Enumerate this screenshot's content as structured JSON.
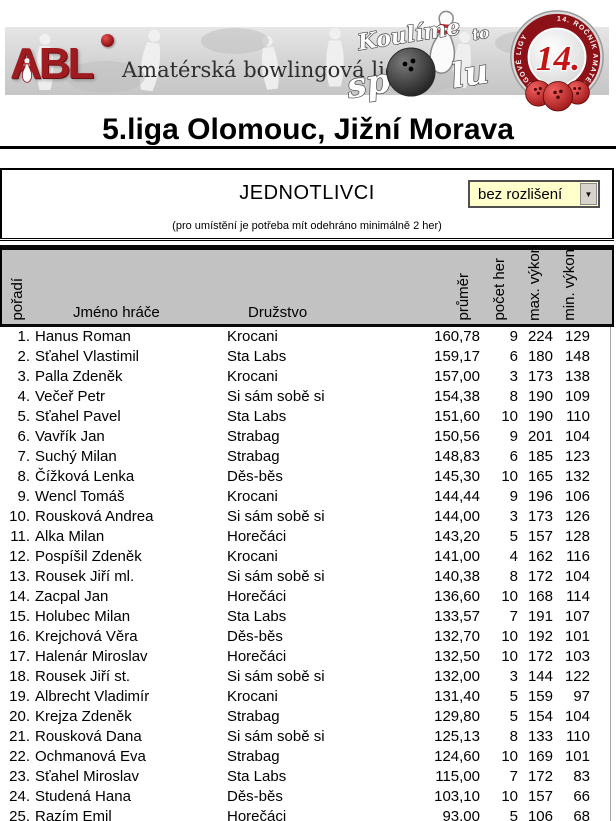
{
  "banner": {
    "abl_text": "ABL",
    "tagline": "Amatérská bowlingová liga",
    "koulime": {
      "word1": "Koulíme",
      "word2": "to",
      "word3": "sp",
      "word4": "lu"
    },
    "badge": {
      "number": "14.",
      "ring_text": "14. ROČNÍK AMATÉRSKÉ BOWLINGOVÉ LIGY"
    }
  },
  "title": "5.liga Olomouc, Jižní Morava",
  "section": {
    "heading": "JEDNOTLIVCI",
    "filter_value": "bez rozlišení",
    "note": "(pro umístění je potřeba mít odehráno minimálně 2 her)"
  },
  "table": {
    "headers": {
      "poradi": "pořadí",
      "jmeno": "Jméno hráče",
      "druzstvo": "Družstvo",
      "prumer": "průměr",
      "pocet": "počet her",
      "max": "max. výkon",
      "min": "min. výkon"
    },
    "rows": [
      {
        "rank": 1,
        "name": "Hanus Roman",
        "team": "Krocani",
        "avg": "160,78",
        "games": 9,
        "max": 224,
        "min": 129
      },
      {
        "rank": 2,
        "name": "Sťahel Vlastimil",
        "team": "Sta Labs",
        "avg": "159,17",
        "games": 6,
        "max": 180,
        "min": 148
      },
      {
        "rank": 3,
        "name": "Palla Zdeněk",
        "team": "Krocani",
        "avg": "157,00",
        "games": 3,
        "max": 173,
        "min": 138
      },
      {
        "rank": 4,
        "name": "Večeř Petr",
        "team": "Si sám sobě si",
        "avg": "154,38",
        "games": 8,
        "max": 190,
        "min": 109
      },
      {
        "rank": 5,
        "name": "Sťahel Pavel",
        "team": "Sta Labs",
        "avg": "151,60",
        "games": 10,
        "max": 190,
        "min": 110
      },
      {
        "rank": 6,
        "name": "Vavřík Jan",
        "team": "Strabag",
        "avg": "150,56",
        "games": 9,
        "max": 201,
        "min": 104
      },
      {
        "rank": 7,
        "name": "Suchý Milan",
        "team": "Strabag",
        "avg": "148,83",
        "games": 6,
        "max": 185,
        "min": 123
      },
      {
        "rank": 8,
        "name": "Čížková Lenka",
        "team": "Děs-běs",
        "avg": "145,30",
        "games": 10,
        "max": 165,
        "min": 132
      },
      {
        "rank": 9,
        "name": "Wencl Tomáš",
        "team": "Krocani",
        "avg": "144,44",
        "games": 9,
        "max": 196,
        "min": 106
      },
      {
        "rank": 10,
        "name": "Rousková Andrea",
        "team": "Si sám sobě si",
        "avg": "144,00",
        "games": 3,
        "max": 173,
        "min": 126
      },
      {
        "rank": 11,
        "name": "Alka Milan",
        "team": "Horečáci",
        "avg": "143,20",
        "games": 5,
        "max": 157,
        "min": 128
      },
      {
        "rank": 12,
        "name": "Pospíšil Zdeněk",
        "team": "Krocani",
        "avg": "141,00",
        "games": 4,
        "max": 162,
        "min": 116
      },
      {
        "rank": 13,
        "name": "Rousek Jiří ml.",
        "team": "Si sám sobě si",
        "avg": "140,38",
        "games": 8,
        "max": 172,
        "min": 104
      },
      {
        "rank": 14,
        "name": "Zacpal Jan",
        "team": "Horečáci",
        "avg": "136,60",
        "games": 10,
        "max": 168,
        "min": 114
      },
      {
        "rank": 15,
        "name": "Holubec Milan",
        "team": "Sta Labs",
        "avg": "133,57",
        "games": 7,
        "max": 191,
        "min": 107
      },
      {
        "rank": 16,
        "name": "Krejchová Věra",
        "team": "Děs-běs",
        "avg": "132,70",
        "games": 10,
        "max": 192,
        "min": 101
      },
      {
        "rank": 17,
        "name": "Halenár Miroslav",
        "team": "Horečáci",
        "avg": "132,50",
        "games": 10,
        "max": 172,
        "min": 103
      },
      {
        "rank": 18,
        "name": "Rousek Jiří st.",
        "team": "Si sám sobě si",
        "avg": "132,00",
        "games": 3,
        "max": 144,
        "min": 122
      },
      {
        "rank": 19,
        "name": "Albrecht Vladimír",
        "team": "Krocani",
        "avg": "131,40",
        "games": 5,
        "max": 159,
        "min": 97
      },
      {
        "rank": 20,
        "name": "Krejza Zdeněk",
        "team": "Strabag",
        "avg": "129,80",
        "games": 5,
        "max": 154,
        "min": 104
      },
      {
        "rank": 21,
        "name": "Rousková Dana",
        "team": "Si sám sobě si",
        "avg": "125,13",
        "games": 8,
        "max": 133,
        "min": 110
      },
      {
        "rank": 22,
        "name": "Ochmanová Eva",
        "team": "Strabag",
        "avg": "124,60",
        "games": 10,
        "max": 169,
        "min": 101
      },
      {
        "rank": 23,
        "name": "Sťahel Miroslav",
        "team": "Sta Labs",
        "avg": "115,00",
        "games": 7,
        "max": 172,
        "min": 83
      },
      {
        "rank": 24,
        "name": "Studená Hana",
        "team": "Děs-běs",
        "avg": "103,10",
        "games": 10,
        "max": 157,
        "min": 66
      },
      {
        "rank": 25,
        "name": "Razím Emil",
        "team": "Horečáci",
        "avg": "93,00",
        "games": 5,
        "max": 106,
        "min": 68
      }
    ]
  },
  "colors": {
    "accent_red": "#9e1c20",
    "badge_red": "#8d1217",
    "header_gray": "#c2c2c2",
    "dropdown_yellow": "#ffffcc"
  }
}
